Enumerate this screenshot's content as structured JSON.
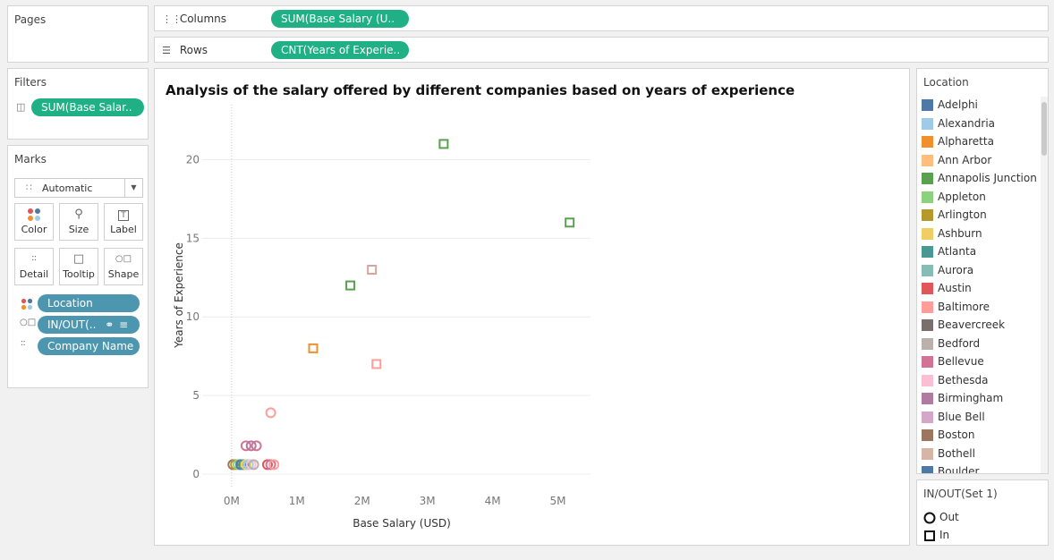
{
  "pages": {
    "title": "Pages"
  },
  "shelves": {
    "columns_label": "Columns",
    "columns_pill": "SUM(Base Salary (U..",
    "rows_label": "Rows",
    "rows_pill": "CNT(Years of Experie.."
  },
  "filters": {
    "title": "Filters",
    "pill": "SUM(Base Salar.."
  },
  "marks": {
    "title": "Marks",
    "type": "Automatic",
    "buttons": {
      "color": "Color",
      "size": "Size",
      "label": "Label",
      "detail": "Detail",
      "tooltip": "Tooltip",
      "shape": "Shape"
    },
    "fields": {
      "location": "Location",
      "inout": "IN/OUT(..",
      "company": "Company Name"
    }
  },
  "colors": {
    "accent_green": "#1fb185",
    "field_blue": "#4d96b0"
  },
  "chart_data": {
    "type": "scatter",
    "title": "Analysis of the salary offered by different companies based on years of experience",
    "xlabel": "Base Salary (USD)",
    "ylabel": "Years of Experience",
    "xlim": [
      -0.45,
      5.5
    ],
    "ylim": [
      -0.8,
      23.5
    ],
    "x_ticks": [
      0,
      1,
      2,
      3,
      4,
      5
    ],
    "x_tick_labels": [
      "0M",
      "1M",
      "2M",
      "3M",
      "4M",
      "5M"
    ],
    "y_ticks": [
      0,
      5,
      10,
      15,
      20
    ],
    "y_tick_labels": [
      "0",
      "5",
      "10",
      "15",
      "20"
    ],
    "points": [
      {
        "x": 3.25,
        "y": 21,
        "shape": "in",
        "color": "#59a14f"
      },
      {
        "x": 5.18,
        "y": 16,
        "shape": "in",
        "color": "#59a14f"
      },
      {
        "x": 2.15,
        "y": 13,
        "shape": "in",
        "color": "#d4a6a0"
      },
      {
        "x": 1.82,
        "y": 12,
        "shape": "in",
        "color": "#59a14f"
      },
      {
        "x": 1.25,
        "y": 8,
        "shape": "in",
        "color": "#f28e2b"
      },
      {
        "x": 2.22,
        "y": 7,
        "shape": "in",
        "color": "#ff9d9a"
      },
      {
        "x": 0.6,
        "y": 3.9,
        "shape": "out",
        "color": "#ff9d9a"
      },
      {
        "x": 0.22,
        "y": 1.8,
        "shape": "out",
        "color": "#d37295"
      },
      {
        "x": 0.3,
        "y": 1.8,
        "shape": "out",
        "color": "#b07aa1"
      },
      {
        "x": 0.38,
        "y": 1.8,
        "shape": "out",
        "color": "#d37295"
      },
      {
        "x": 0.02,
        "y": 0.6,
        "shape": "out",
        "color": "#9d7660"
      },
      {
        "x": 0.06,
        "y": 0.6,
        "shape": "out",
        "color": "#b6992d"
      },
      {
        "x": 0.1,
        "y": 0.6,
        "shape": "out",
        "color": "#8cd17d"
      },
      {
        "x": 0.14,
        "y": 0.6,
        "shape": "out",
        "color": "#4e79a7"
      },
      {
        "x": 0.18,
        "y": 0.6,
        "shape": "out",
        "color": "#499894"
      },
      {
        "x": 0.22,
        "y": 0.6,
        "shape": "out",
        "color": "#f1ce63"
      },
      {
        "x": 0.26,
        "y": 0.6,
        "shape": "out",
        "color": "#a0cbe8"
      },
      {
        "x": 0.3,
        "y": 0.6,
        "shape": "out",
        "color": "#fabfd2"
      },
      {
        "x": 0.34,
        "y": 0.6,
        "shape": "out",
        "color": "#bab0ac"
      },
      {
        "x": 0.55,
        "y": 0.6,
        "shape": "out",
        "color": "#e15759"
      },
      {
        "x": 0.6,
        "y": 0.6,
        "shape": "out",
        "color": "#d37295"
      },
      {
        "x": 0.65,
        "y": 0.6,
        "shape": "out",
        "color": "#ff9d9a"
      }
    ]
  },
  "legend_location": {
    "title": "Location",
    "items": [
      {
        "label": "Adelphi",
        "color": "#4e79a7"
      },
      {
        "label": "Alexandria",
        "color": "#a0cbe8"
      },
      {
        "label": "Alpharetta",
        "color": "#f28e2b"
      },
      {
        "label": "Ann Arbor",
        "color": "#ffbe7d"
      },
      {
        "label": "Annapolis Junction",
        "color": "#59a14f"
      },
      {
        "label": "Appleton",
        "color": "#8cd17d"
      },
      {
        "label": "Arlington",
        "color": "#b6992d"
      },
      {
        "label": "Ashburn",
        "color": "#f1ce63"
      },
      {
        "label": "Atlanta",
        "color": "#499894"
      },
      {
        "label": "Aurora",
        "color": "#86bcb6"
      },
      {
        "label": "Austin",
        "color": "#e15759"
      },
      {
        "label": "Baltimore",
        "color": "#ff9d9a"
      },
      {
        "label": "Beavercreek",
        "color": "#79706e"
      },
      {
        "label": "Bedford",
        "color": "#bab0ac"
      },
      {
        "label": "Bellevue",
        "color": "#d37295"
      },
      {
        "label": "Bethesda",
        "color": "#fabfd2"
      },
      {
        "label": "Birmingham",
        "color": "#b07aa1"
      },
      {
        "label": "Blue Bell",
        "color": "#d4a6c8"
      },
      {
        "label": "Boston",
        "color": "#9d7660"
      },
      {
        "label": "Bothell",
        "color": "#d7b5a6"
      },
      {
        "label": "Boulder",
        "color": "#4e79a7"
      }
    ]
  },
  "legend_inout": {
    "title": "IN/OUT(Set 1)",
    "items": [
      {
        "label": "Out"
      },
      {
        "label": "In"
      }
    ]
  }
}
